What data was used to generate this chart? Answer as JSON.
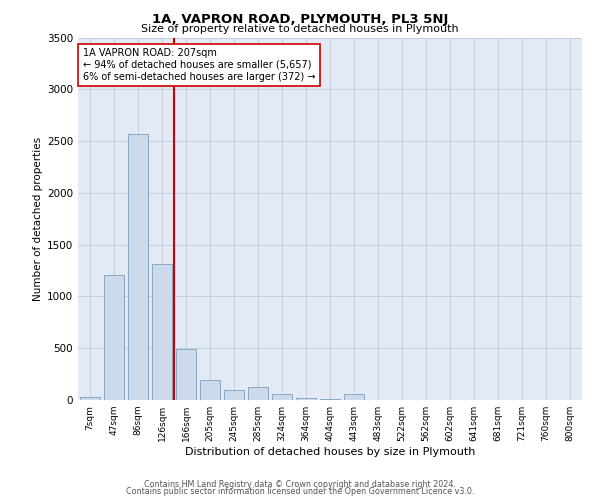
{
  "title": "1A, VAPRON ROAD, PLYMOUTH, PL3 5NJ",
  "subtitle": "Size of property relative to detached houses in Plymouth",
  "xlabel": "Distribution of detached houses by size in Plymouth",
  "ylabel": "Number of detached properties",
  "bar_color": "#ccdaeb",
  "bar_edge_color": "#7aa0be",
  "grid_color": "#c5cfe0",
  "background_color": "#e4eaf4",
  "categories": [
    "7sqm",
    "47sqm",
    "86sqm",
    "126sqm",
    "166sqm",
    "205sqm",
    "245sqm",
    "285sqm",
    "324sqm",
    "364sqm",
    "404sqm",
    "443sqm",
    "483sqm",
    "522sqm",
    "562sqm",
    "602sqm",
    "641sqm",
    "681sqm",
    "721sqm",
    "760sqm",
    "800sqm"
  ],
  "values": [
    25,
    1210,
    2570,
    1310,
    490,
    190,
    100,
    130,
    55,
    20,
    5,
    55,
    0,
    0,
    0,
    0,
    0,
    0,
    0,
    0,
    0
  ],
  "vline_x_index": 3.5,
  "annotation_text": "1A VAPRON ROAD: 207sqm\n← 94% of detached houses are smaller (5,657)\n6% of semi-detached houses are larger (372) →",
  "annotation_box_color": "#ffffff",
  "annotation_box_edge_color": "#cc0000",
  "vline_color": "#cc0000",
  "ylim": [
    0,
    3500
  ],
  "yticks": [
    0,
    500,
    1000,
    1500,
    2000,
    2500,
    3000,
    3500
  ],
  "footer1": "Contains HM Land Registry data © Crown copyright and database right 2024.",
  "footer2": "Contains public sector information licensed under the Open Government Licence v3.0."
}
